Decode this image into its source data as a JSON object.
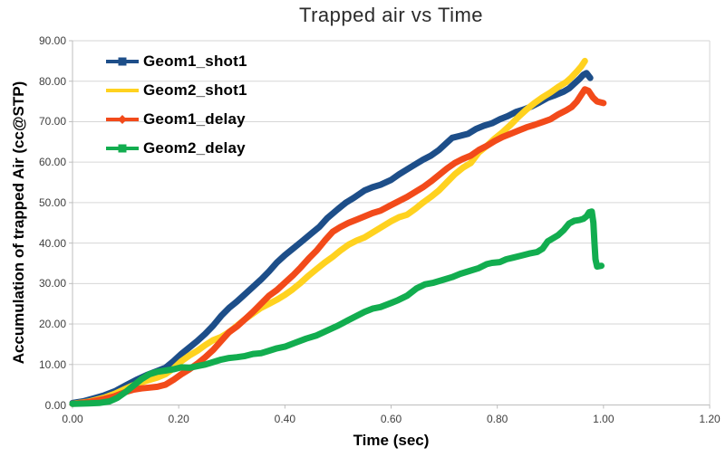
{
  "chart_data": {
    "type": "line",
    "title": "Trapped air vs Time",
    "xlabel": "Time (sec)",
    "ylabel": "Accumulation of trapped Air (cc@STP)",
    "xlim": [
      0,
      1.2
    ],
    "ylim": [
      0,
      90
    ],
    "grid": "horizontal",
    "legend_position": "top-left-inside",
    "x_ticks": [
      "0.00",
      "0.20",
      "0.40",
      "0.60",
      "0.80",
      "1.00",
      "1.20"
    ],
    "x_tick_values": [
      0,
      0.2,
      0.4,
      0.6,
      0.8,
      1.0,
      1.2
    ],
    "y_ticks": [
      "0.00",
      "10.00",
      "20.00",
      "30.00",
      "40.00",
      "50.00",
      "60.00",
      "70.00",
      "80.00",
      "90.00"
    ],
    "y_tick_values": [
      0,
      10,
      20,
      30,
      40,
      50,
      60,
      70,
      80,
      90
    ],
    "colors": {
      "gridline": "#d6d6d6",
      "axis": "#bdbdbd",
      "tick_text": "#3f3f3f",
      "title_text": "#2b2b2b"
    },
    "series": [
      {
        "name": "Geom1_shot1",
        "color": "#1d4e89",
        "marker": "square",
        "points": [
          [
            0,
            0.5
          ],
          [
            0.02,
            0.9
          ],
          [
            0.04,
            1.6
          ],
          [
            0.06,
            2.4
          ],
          [
            0.08,
            3.4
          ],
          [
            0.1,
            4.8
          ],
          [
            0.12,
            6.2
          ],
          [
            0.14,
            7.4
          ],
          [
            0.16,
            8.4
          ],
          [
            0.175,
            9.2
          ],
          [
            0.19,
            10.8
          ],
          [
            0.205,
            12.6
          ],
          [
            0.22,
            14.2
          ],
          [
            0.235,
            15.8
          ],
          [
            0.25,
            17.6
          ],
          [
            0.265,
            19.6
          ],
          [
            0.28,
            22.0
          ],
          [
            0.295,
            24.0
          ],
          [
            0.31,
            25.6
          ],
          [
            0.325,
            27.4
          ],
          [
            0.34,
            29.2
          ],
          [
            0.355,
            31.0
          ],
          [
            0.37,
            33.0
          ],
          [
            0.385,
            35.2
          ],
          [
            0.4,
            37.0
          ],
          [
            0.415,
            38.6
          ],
          [
            0.43,
            40.2
          ],
          [
            0.45,
            42.4
          ],
          [
            0.465,
            44.0
          ],
          [
            0.48,
            46.2
          ],
          [
            0.5,
            48.4
          ],
          [
            0.515,
            50.0
          ],
          [
            0.53,
            51.2
          ],
          [
            0.55,
            53.0
          ],
          [
            0.565,
            53.8
          ],
          [
            0.58,
            54.4
          ],
          [
            0.6,
            55.6
          ],
          [
            0.615,
            57.0
          ],
          [
            0.63,
            58.2
          ],
          [
            0.645,
            59.4
          ],
          [
            0.66,
            60.6
          ],
          [
            0.675,
            61.6
          ],
          [
            0.69,
            63.0
          ],
          [
            0.705,
            64.8
          ],
          [
            0.715,
            66.0
          ],
          [
            0.73,
            66.5
          ],
          [
            0.745,
            67.0
          ],
          [
            0.76,
            68.2
          ],
          [
            0.775,
            69.0
          ],
          [
            0.79,
            69.6
          ],
          [
            0.805,
            70.6
          ],
          [
            0.82,
            71.4
          ],
          [
            0.835,
            72.4
          ],
          [
            0.85,
            73.0
          ],
          [
            0.865,
            73.8
          ],
          [
            0.88,
            74.8
          ],
          [
            0.895,
            75.9
          ],
          [
            0.91,
            76.6
          ],
          [
            0.925,
            77.4
          ],
          [
            0.935,
            78.2
          ],
          [
            0.945,
            79.4
          ],
          [
            0.955,
            80.6
          ],
          [
            0.962,
            81.6
          ],
          [
            0.968,
            82.0
          ],
          [
            0.975,
            80.8
          ]
        ]
      },
      {
        "name": "Geom2_shot1",
        "color": "#ffd21f",
        "marker": "none",
        "points": [
          [
            0,
            0.3
          ],
          [
            0.03,
            0.8
          ],
          [
            0.06,
            1.8
          ],
          [
            0.08,
            2.8
          ],
          [
            0.1,
            4.0
          ],
          [
            0.12,
            5.2
          ],
          [
            0.14,
            6.0
          ],
          [
            0.16,
            6.8
          ],
          [
            0.175,
            7.6
          ],
          [
            0.19,
            9.0
          ],
          [
            0.205,
            10.8
          ],
          [
            0.22,
            12.2
          ],
          [
            0.235,
            13.4
          ],
          [
            0.25,
            14.8
          ],
          [
            0.265,
            16.0
          ],
          [
            0.28,
            16.8
          ],
          [
            0.295,
            18.0
          ],
          [
            0.31,
            19.6
          ],
          [
            0.325,
            21.2
          ],
          [
            0.34,
            22.6
          ],
          [
            0.355,
            24.0
          ],
          [
            0.37,
            25.0
          ],
          [
            0.385,
            26.0
          ],
          [
            0.4,
            27.2
          ],
          [
            0.415,
            28.6
          ],
          [
            0.43,
            30.2
          ],
          [
            0.445,
            32.0
          ],
          [
            0.46,
            33.6
          ],
          [
            0.475,
            35.2
          ],
          [
            0.49,
            36.6
          ],
          [
            0.505,
            38.2
          ],
          [
            0.52,
            39.6
          ],
          [
            0.535,
            40.6
          ],
          [
            0.55,
            41.4
          ],
          [
            0.565,
            42.6
          ],
          [
            0.58,
            43.8
          ],
          [
            0.6,
            45.4
          ],
          [
            0.615,
            46.4
          ],
          [
            0.63,
            47.0
          ],
          [
            0.645,
            48.4
          ],
          [
            0.66,
            50.0
          ],
          [
            0.675,
            51.4
          ],
          [
            0.69,
            53.0
          ],
          [
            0.705,
            55.0
          ],
          [
            0.72,
            57.0
          ],
          [
            0.735,
            58.6
          ],
          [
            0.75,
            59.8
          ],
          [
            0.765,
            62.4
          ],
          [
            0.78,
            64.0
          ],
          [
            0.795,
            65.8
          ],
          [
            0.81,
            67.4
          ],
          [
            0.825,
            69.2
          ],
          [
            0.84,
            71.2
          ],
          [
            0.855,
            73.0
          ],
          [
            0.87,
            74.6
          ],
          [
            0.885,
            76.0
          ],
          [
            0.9,
            77.2
          ],
          [
            0.915,
            78.6
          ],
          [
            0.93,
            79.8
          ],
          [
            0.94,
            81.0
          ],
          [
            0.95,
            82.4
          ],
          [
            0.958,
            83.6
          ],
          [
            0.965,
            85.0
          ]
        ]
      },
      {
        "name": "Geom1_delay",
        "color": "#f24a1a",
        "marker": "diamond",
        "points": [
          [
            0,
            0.3
          ],
          [
            0.03,
            0.7
          ],
          [
            0.06,
            1.5
          ],
          [
            0.08,
            2.2
          ],
          [
            0.1,
            3.2
          ],
          [
            0.115,
            3.8
          ],
          [
            0.13,
            4.1
          ],
          [
            0.145,
            4.3
          ],
          [
            0.16,
            4.5
          ],
          [
            0.175,
            5.0
          ],
          [
            0.19,
            6.2
          ],
          [
            0.205,
            7.6
          ],
          [
            0.22,
            8.8
          ],
          [
            0.235,
            10.2
          ],
          [
            0.25,
            11.8
          ],
          [
            0.265,
            13.6
          ],
          [
            0.28,
            15.8
          ],
          [
            0.295,
            18.0
          ],
          [
            0.31,
            19.4
          ],
          [
            0.325,
            21.2
          ],
          [
            0.34,
            23.0
          ],
          [
            0.355,
            25.0
          ],
          [
            0.37,
            27.0
          ],
          [
            0.385,
            28.4
          ],
          [
            0.4,
            30.2
          ],
          [
            0.415,
            32.0
          ],
          [
            0.43,
            34.0
          ],
          [
            0.445,
            36.2
          ],
          [
            0.46,
            38.2
          ],
          [
            0.475,
            40.6
          ],
          [
            0.49,
            42.8
          ],
          [
            0.505,
            44.0
          ],
          [
            0.52,
            45.0
          ],
          [
            0.535,
            45.8
          ],
          [
            0.55,
            46.6
          ],
          [
            0.565,
            47.4
          ],
          [
            0.58,
            48.0
          ],
          [
            0.6,
            49.4
          ],
          [
            0.615,
            50.4
          ],
          [
            0.63,
            51.4
          ],
          [
            0.645,
            52.6
          ],
          [
            0.66,
            53.8
          ],
          [
            0.675,
            55.2
          ],
          [
            0.69,
            56.8
          ],
          [
            0.705,
            58.4
          ],
          [
            0.72,
            59.8
          ],
          [
            0.735,
            60.8
          ],
          [
            0.75,
            61.6
          ],
          [
            0.765,
            63.0
          ],
          [
            0.78,
            64.0
          ],
          [
            0.795,
            65.2
          ],
          [
            0.81,
            66.2
          ],
          [
            0.825,
            67.0
          ],
          [
            0.84,
            67.8
          ],
          [
            0.855,
            68.6
          ],
          [
            0.87,
            69.2
          ],
          [
            0.885,
            69.9
          ],
          [
            0.9,
            70.6
          ],
          [
            0.915,
            71.8
          ],
          [
            0.93,
            72.8
          ],
          [
            0.94,
            73.6
          ],
          [
            0.95,
            75.0
          ],
          [
            0.958,
            76.6
          ],
          [
            0.965,
            78.0
          ],
          [
            0.972,
            77.6
          ],
          [
            0.98,
            76.0
          ],
          [
            0.988,
            75.0
          ],
          [
            1.0,
            74.6
          ]
        ]
      },
      {
        "name": "Geom2_delay",
        "color": "#12ad4f",
        "marker": "square",
        "points": [
          [
            0,
            0.3
          ],
          [
            0.03,
            0.4
          ],
          [
            0.05,
            0.5
          ],
          [
            0.07,
            0.9
          ],
          [
            0.085,
            1.8
          ],
          [
            0.1,
            3.2
          ],
          [
            0.115,
            4.8
          ],
          [
            0.13,
            6.4
          ],
          [
            0.145,
            7.6
          ],
          [
            0.16,
            8.2
          ],
          [
            0.175,
            8.5
          ],
          [
            0.19,
            8.8
          ],
          [
            0.205,
            9.3
          ],
          [
            0.22,
            9.2
          ],
          [
            0.235,
            9.6
          ],
          [
            0.25,
            10.0
          ],
          [
            0.265,
            10.6
          ],
          [
            0.28,
            11.2
          ],
          [
            0.295,
            11.6
          ],
          [
            0.31,
            11.8
          ],
          [
            0.325,
            12.1
          ],
          [
            0.34,
            12.6
          ],
          [
            0.355,
            12.8
          ],
          [
            0.37,
            13.4
          ],
          [
            0.385,
            14.0
          ],
          [
            0.4,
            14.4
          ],
          [
            0.42,
            15.4
          ],
          [
            0.44,
            16.4
          ],
          [
            0.46,
            17.2
          ],
          [
            0.48,
            18.4
          ],
          [
            0.5,
            19.6
          ],
          [
            0.52,
            21.0
          ],
          [
            0.535,
            22.0
          ],
          [
            0.55,
            23.0
          ],
          [
            0.565,
            23.8
          ],
          [
            0.58,
            24.2
          ],
          [
            0.6,
            25.2
          ],
          [
            0.613,
            25.9
          ],
          [
            0.63,
            27.0
          ],
          [
            0.648,
            28.8
          ],
          [
            0.664,
            29.8
          ],
          [
            0.68,
            30.2
          ],
          [
            0.7,
            31.0
          ],
          [
            0.715,
            31.6
          ],
          [
            0.73,
            32.4
          ],
          [
            0.75,
            33.2
          ],
          [
            0.765,
            33.8
          ],
          [
            0.78,
            34.8
          ],
          [
            0.79,
            35.1
          ],
          [
            0.805,
            35.3
          ],
          [
            0.817,
            36.0
          ],
          [
            0.83,
            36.4
          ],
          [
            0.845,
            36.9
          ],
          [
            0.86,
            37.4
          ],
          [
            0.875,
            37.8
          ],
          [
            0.885,
            38.6
          ],
          [
            0.895,
            40.4
          ],
          [
            0.905,
            41.2
          ],
          [
            0.915,
            42.0
          ],
          [
            0.925,
            43.2
          ],
          [
            0.935,
            44.8
          ],
          [
            0.945,
            45.5
          ],
          [
            0.955,
            45.7
          ],
          [
            0.962,
            46.0
          ],
          [
            0.968,
            46.6
          ],
          [
            0.973,
            47.6
          ],
          [
            0.978,
            47.8
          ],
          [
            0.981,
            45.0
          ],
          [
            0.983,
            40.0
          ],
          [
            0.985,
            36.0
          ],
          [
            0.988,
            34.2
          ],
          [
            0.996,
            34.4
          ]
        ]
      }
    ]
  }
}
